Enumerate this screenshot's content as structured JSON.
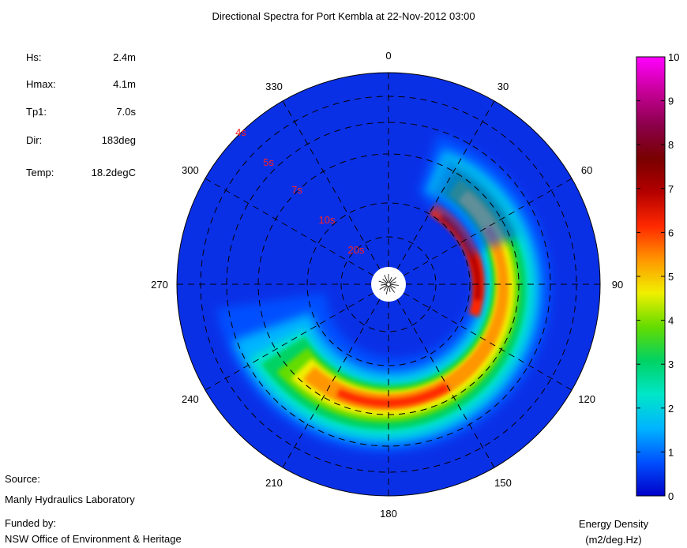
{
  "title": "Directional Spectra for Port Kembla at 22-Nov-2012 03:00",
  "stats": [
    {
      "label": "Hs:",
      "value": "2.4m"
    },
    {
      "label": "Hmax:",
      "value": "4.1m"
    },
    {
      "label": "Tp1:",
      "value": "7.0s"
    },
    {
      "label": "Dir:",
      "value": "183deg"
    },
    {
      "label": "Temp:",
      "value": "18.2degC"
    }
  ],
  "source": {
    "source_label": "Source:",
    "source_value": "Manly Hydraulics Laboratory",
    "funded_label": "Funded by:",
    "funded_value": "NSW Office of Environment & Heritage"
  },
  "colorbar": {
    "label": "Energy Density",
    "unit": "(m2/deg.Hz)",
    "ticks": [
      "0",
      "1",
      "2",
      "3",
      "4",
      "5",
      "6",
      "7",
      "8",
      "9",
      "10"
    ],
    "min": 0,
    "max": 10
  },
  "chart_data": {
    "type": "heatmap",
    "projection": "polar",
    "title": "Directional Spectra for Port Kembla at 22-Nov-2012 03:00",
    "angle_ticks": [
      "0",
      "30",
      "60",
      "90",
      "120",
      "150",
      "180",
      "210",
      "240",
      "270",
      "300",
      "330"
    ],
    "period_rings": [
      "4s",
      "5s",
      "7s",
      "10s",
      "20s"
    ],
    "peak_period_s": 7.0,
    "peak_direction_deg": 183,
    "colormap": [
      "#0000c8",
      "#0050ff",
      "#00b4ff",
      "#00e6c8",
      "#00d264",
      "#64dc00",
      "#f0f000",
      "#ff9600",
      "#ff2800",
      "#b40000",
      "#780000",
      "#8c004c",
      "#c8009a",
      "#ff00ff"
    ],
    "background_color": "#0a30e6"
  }
}
